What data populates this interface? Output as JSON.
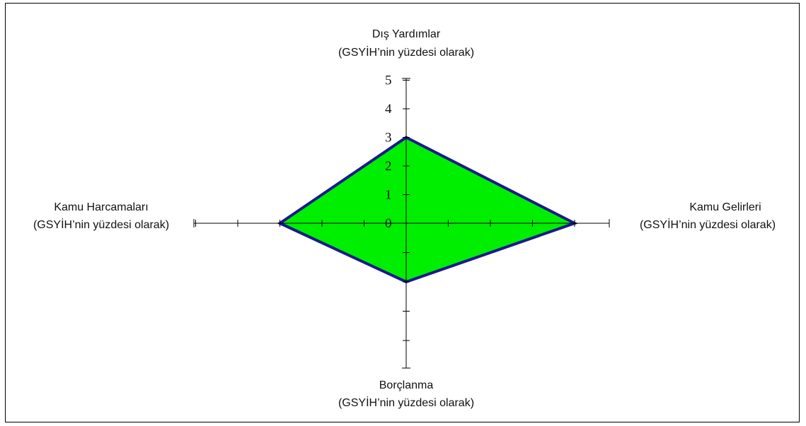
{
  "chart_data": {
    "type": "radar",
    "axes": [
      {
        "key": "top",
        "name": "Dış Yardımlar",
        "unit": "(GSYİH’nin yüzdesi olarak)"
      },
      {
        "key": "right",
        "name": "Kamu Gelirleri",
        "unit": "(GSYİH’nin yüzdesi olarak)"
      },
      {
        "key": "bottom",
        "name": "Borçlanma",
        "unit": "(GSYİH’nin yüzdesi olarak)"
      },
      {
        "key": "left",
        "name": "Kamu Harcamaları",
        "unit": "(GSYİH’nin yüzdesi olarak)"
      }
    ],
    "tick_labels": [
      "0",
      "1",
      "2",
      "3",
      "4",
      "5"
    ],
    "values": {
      "top": 3,
      "right": 4,
      "bottom": 2,
      "left": 3
    },
    "fill_color": "#00ee00",
    "stroke_color": "#1a1a8c"
  }
}
